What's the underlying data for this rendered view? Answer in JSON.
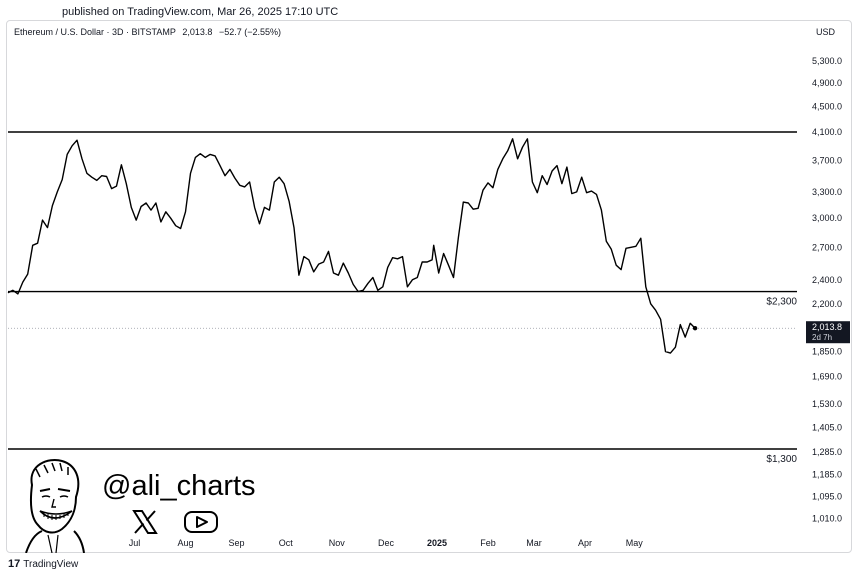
{
  "published": "published on TradingView.com, Mar 26, 2025 17:10 UTC",
  "header": {
    "symbol": "Ethereum / U.S. Dollar · 3D · BITSTAMP",
    "last": "2,013.8",
    "change": "−52.7 (−2.55%)"
  },
  "currency": "USD",
  "watermark": {
    "handle": "@ali_charts",
    "icons": [
      "x-icon",
      "youtube-icon"
    ]
  },
  "footer": {
    "brand": "TradingView",
    "logo_glyph": "17"
  },
  "chart_data": {
    "type": "line",
    "y_ticks": [
      "5,300.0",
      "4,900.0",
      "4,500.0",
      "4,100.0",
      "3,700.0",
      "3,300.0",
      "3,000.0",
      "2,700.0",
      "2,400.0",
      "2,200.0",
      "1,850.0",
      "1,690.0",
      "1,530.0",
      "1,405.0",
      "1,285.0",
      "1,185.0",
      "1,095.0",
      "1,010.0"
    ],
    "y_tick_values": [
      5300,
      4900,
      4500,
      4100,
      3700,
      3300,
      3000,
      2700,
      2400,
      2200,
      1850,
      1690,
      1530,
      1405,
      1285,
      1185,
      1095,
      1010
    ],
    "x_ticks": [
      "Jul",
      "Aug",
      "Sep",
      "Oct",
      "Nov",
      "Dec",
      "2025",
      "Feb",
      "Mar",
      "Apr",
      "May"
    ],
    "x_tick_dates": [
      "2024-07-01",
      "2024-08-01",
      "2024-09-01",
      "2024-10-01",
      "2024-11-01",
      "2024-12-01",
      "2025-01-01",
      "2025-02-01",
      "2025-03-01",
      "2025-04-01",
      "2025-05-01"
    ],
    "last_price": {
      "value": 2013.8,
      "label": "2,013.8",
      "countdown": "2d 7h"
    },
    "levels": [
      {
        "value": 4100,
        "label": ""
      },
      {
        "value": 2300,
        "label": "$2,300"
      },
      {
        "value": 1300,
        "label": "$1,300"
      }
    ],
    "series": [
      {
        "values": [
          [
            "2024-04-15",
            2290
          ],
          [
            "2024-04-18",
            2310
          ],
          [
            "2024-04-21",
            2280
          ],
          [
            "2024-04-24",
            2380
          ],
          [
            "2024-04-27",
            2450
          ],
          [
            "2024-04-30",
            2720
          ],
          [
            "2024-05-03",
            2740
          ],
          [
            "2024-05-06",
            2980
          ],
          [
            "2024-05-09",
            2900
          ],
          [
            "2024-05-12",
            3140
          ],
          [
            "2024-05-15",
            3300
          ],
          [
            "2024-05-18",
            3450
          ],
          [
            "2024-05-21",
            3780
          ],
          [
            "2024-05-24",
            3900
          ],
          [
            "2024-05-27",
            3980
          ],
          [
            "2024-05-30",
            3720
          ],
          [
            "2024-06-02",
            3530
          ],
          [
            "2024-06-05",
            3480
          ],
          [
            "2024-06-08",
            3440
          ],
          [
            "2024-06-11",
            3500
          ],
          [
            "2024-06-14",
            3490
          ],
          [
            "2024-06-17",
            3340
          ],
          [
            "2024-06-20",
            3370
          ],
          [
            "2024-06-23",
            3640
          ],
          [
            "2024-06-26",
            3400
          ],
          [
            "2024-06-29",
            3120
          ],
          [
            "2024-07-02",
            2980
          ],
          [
            "2024-07-05",
            3130
          ],
          [
            "2024-07-08",
            3170
          ],
          [
            "2024-07-11",
            3090
          ],
          [
            "2024-07-14",
            3170
          ],
          [
            "2024-07-17",
            2960
          ],
          [
            "2024-07-20",
            3070
          ],
          [
            "2024-07-23",
            3000
          ],
          [
            "2024-07-26",
            2920
          ],
          [
            "2024-07-29",
            2890
          ],
          [
            "2024-08-01",
            3070
          ],
          [
            "2024-08-04",
            3530
          ],
          [
            "2024-08-07",
            3740
          ],
          [
            "2024-08-10",
            3790
          ],
          [
            "2024-08-13",
            3740
          ],
          [
            "2024-08-16",
            3780
          ],
          [
            "2024-08-19",
            3760
          ],
          [
            "2024-08-22",
            3630
          ],
          [
            "2024-08-25",
            3500
          ],
          [
            "2024-08-28",
            3580
          ],
          [
            "2024-08-31",
            3470
          ],
          [
            "2024-09-03",
            3380
          ],
          [
            "2024-09-06",
            3360
          ],
          [
            "2024-09-09",
            3420
          ],
          [
            "2024-09-12",
            3120
          ],
          [
            "2024-09-15",
            2940
          ],
          [
            "2024-09-18",
            3120
          ],
          [
            "2024-09-21",
            3090
          ],
          [
            "2024-09-24",
            3420
          ],
          [
            "2024-09-27",
            3480
          ],
          [
            "2024-09-30",
            3400
          ],
          [
            "2024-10-03",
            3190
          ],
          [
            "2024-10-06",
            2900
          ],
          [
            "2024-10-09",
            2440
          ],
          [
            "2024-10-12",
            2610
          ],
          [
            "2024-10-15",
            2580
          ],
          [
            "2024-10-18",
            2470
          ],
          [
            "2024-10-21",
            2540
          ],
          [
            "2024-10-24",
            2560
          ],
          [
            "2024-10-27",
            2660
          ],
          [
            "2024-10-30",
            2460
          ],
          [
            "2024-11-02",
            2440
          ],
          [
            "2024-11-05",
            2550
          ],
          [
            "2024-11-08",
            2460
          ],
          [
            "2024-11-11",
            2360
          ],
          [
            "2024-11-14",
            2300
          ],
          [
            "2024-11-17",
            2310
          ],
          [
            "2024-11-20",
            2370
          ],
          [
            "2024-11-23",
            2420
          ],
          [
            "2024-11-26",
            2310
          ],
          [
            "2024-11-29",
            2340
          ],
          [
            "2024-12-02",
            2510
          ],
          [
            "2024-12-05",
            2600
          ],
          [
            "2024-12-08",
            2590
          ],
          [
            "2024-12-11",
            2610
          ],
          [
            "2024-12-14",
            2340
          ],
          [
            "2024-12-17",
            2400
          ],
          [
            "2024-12-20",
            2420
          ],
          [
            "2024-12-23",
            2560
          ],
          [
            "2024-12-26",
            2560
          ],
          [
            "2024-12-29",
            2580
          ],
          [
            "2024-12-30",
            2720
          ],
          [
            "2025-01-02",
            2460
          ],
          [
            "2025-01-05",
            2640
          ],
          [
            "2025-01-08",
            2530
          ],
          [
            "2025-01-11",
            2420
          ],
          [
            "2025-01-14",
            2800
          ],
          [
            "2025-01-17",
            3180
          ],
          [
            "2025-01-20",
            3170
          ],
          [
            "2025-01-23",
            3100
          ],
          [
            "2025-01-26",
            3110
          ],
          [
            "2025-01-29",
            3320
          ],
          [
            "2025-02-01",
            3410
          ],
          [
            "2025-02-04",
            3350
          ],
          [
            "2025-02-07",
            3580
          ],
          [
            "2025-02-10",
            3720
          ],
          [
            "2025-02-13",
            3830
          ],
          [
            "2025-02-16",
            4000
          ],
          [
            "2025-02-19",
            3720
          ],
          [
            "2025-02-22",
            3880
          ],
          [
            "2025-02-25",
            4000
          ],
          [
            "2025-02-28",
            3420
          ],
          [
            "2025-03-03",
            3290
          ],
          [
            "2025-03-06",
            3500
          ],
          [
            "2025-03-09",
            3390
          ],
          [
            "2025-03-12",
            3560
          ],
          [
            "2025-03-15",
            3630
          ],
          [
            "2025-03-18",
            3400
          ],
          [
            "2025-03-21",
            3610
          ],
          [
            "2025-03-24",
            3280
          ],
          [
            "2025-03-27",
            3300
          ],
          [
            "2025-03-30",
            3480
          ],
          [
            "2025-04-02",
            3290
          ],
          [
            "2025-04-05",
            3310
          ],
          [
            "2025-04-08",
            3270
          ],
          [
            "2025-04-11",
            3090
          ],
          [
            "2025-04-14",
            2760
          ],
          [
            "2025-04-17",
            2680
          ],
          [
            "2025-04-20",
            2530
          ],
          [
            "2025-04-23",
            2490
          ],
          [
            "2025-04-26",
            2690
          ],
          [
            "2025-04-29",
            2700
          ],
          [
            "2025-05-02",
            2710
          ],
          [
            "2025-05-05",
            2790
          ],
          [
            "2025-05-08",
            2340
          ],
          [
            "2025-05-11",
            2200
          ],
          [
            "2025-05-14",
            2150
          ],
          [
            "2025-05-17",
            2080
          ],
          [
            "2025-05-20",
            1850
          ],
          [
            "2025-05-23",
            1840
          ],
          [
            "2025-05-26",
            1880
          ],
          [
            "2025-05-29",
            2040
          ],
          [
            "2025-06-01",
            1950
          ],
          [
            "2025-06-04",
            2050
          ],
          [
            "2025-06-07",
            2013.8
          ]
        ]
      }
    ]
  }
}
